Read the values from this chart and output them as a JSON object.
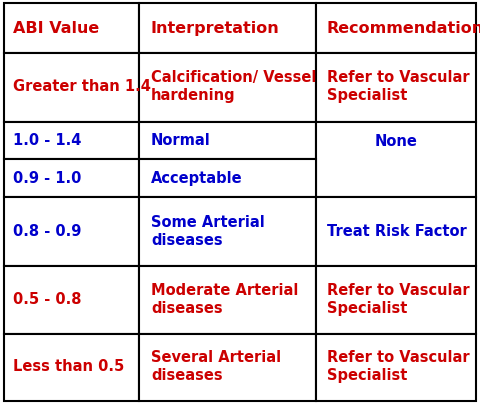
{
  "header": [
    "ABI Value",
    "Interpretation",
    "Recommendation"
  ],
  "header_color": "#cc0000",
  "rows": [
    {
      "abi": "Greater than 1.4",
      "interp": "Calcification/ Vessel\nhardening",
      "rec": "Refer to Vascular\nSpecialist",
      "abi_color": "#cc0000",
      "interp_color": "#cc0000",
      "rec_color": "#cc0000"
    },
    {
      "abi": "1.0 - 1.4",
      "interp": "Normal",
      "rec": "None",
      "abi_color": "#0000cc",
      "interp_color": "#0000cc",
      "rec_color": "#0000cc"
    },
    {
      "abi": "0.9 - 1.0",
      "interp": "Acceptable",
      "rec": "",
      "abi_color": "#0000cc",
      "interp_color": "#0000cc",
      "rec_color": "#0000cc"
    },
    {
      "abi": "0.8 - 0.9",
      "interp": "Some Arterial\ndiseases",
      "rec": "Treat Risk Factor",
      "abi_color": "#0000cc",
      "interp_color": "#0000cc",
      "rec_color": "#0000cc"
    },
    {
      "abi": "0.5 - 0.8",
      "interp": "Moderate Arterial\ndiseases",
      "rec": "Refer to Vascular\nSpecialist",
      "abi_color": "#cc0000",
      "interp_color": "#cc0000",
      "rec_color": "#cc0000"
    },
    {
      "abi": "Less than 0.5",
      "interp": "Several Arterial\ndiseases",
      "rec": "Refer to Vascular\nSpecialist",
      "abi_color": "#cc0000",
      "interp_color": "#cc0000",
      "rec_color": "#cc0000"
    }
  ],
  "background_color": "#ffffff",
  "border_color": "#000000",
  "font_size": 10.5,
  "header_font_size": 11.5
}
